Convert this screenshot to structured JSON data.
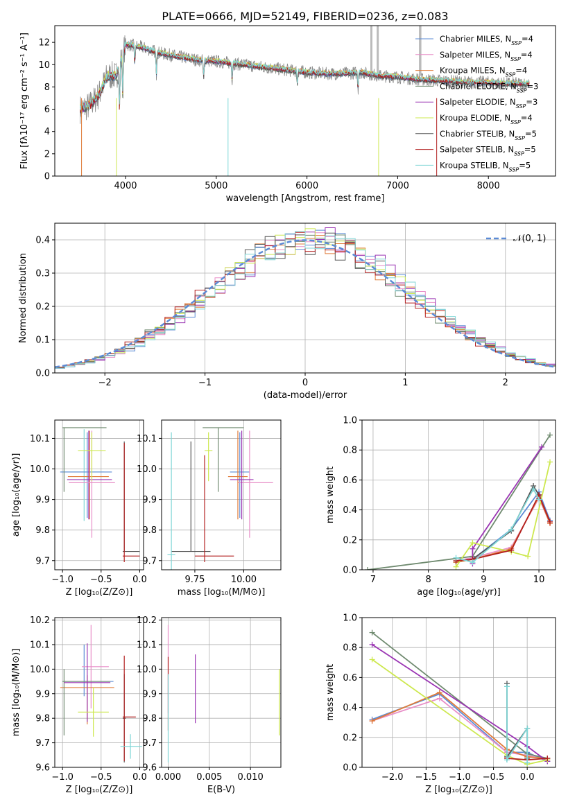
{
  "figure_title": "PLATE=0666, MJD=52149, FIBERID=0236, z=0.083",
  "colors": {
    "chabrier_miles": "#5b8bd6",
    "salpeter_miles": "#e88fc8",
    "kroupa_miles": "#e07b39",
    "chabrier_elodie": "#6f8a6f",
    "salpeter_elodie": "#9a34b3",
    "kroupa_elodie": "#cde84f",
    "chabrier_stelib": "#555555",
    "salpeter_stelib": "#b21f1f",
    "kroupa_stelib": "#7fd6d6",
    "data": "#888888",
    "normal": "#5b8bd6"
  },
  "chart_data": [
    {
      "id": "spectrum",
      "type": "line",
      "title": "PLATE=0666, MJD=52149, FIBERID=0236, z=0.083",
      "xlabel": "wavelength [Angstrom, rest frame]",
      "ylabel": "Flux [fλ10⁻¹⁷ erg cm⁻² s⁻¹ A⁻¹]",
      "xlim": [
        3220,
        8740
      ],
      "ylim": [
        0,
        13.5
      ],
      "xticks": [
        4000,
        5000,
        6000,
        7000,
        8000
      ],
      "yticks": [
        0,
        2,
        4,
        6,
        8,
        10,
        12
      ],
      "x": [
        3500,
        3600,
        3700,
        3800,
        3900,
        4000,
        4100,
        4200,
        4400,
        4600,
        4800,
        5000,
        5200,
        5400,
        5600,
        5800,
        6000,
        6200,
        6400,
        6600,
        6800,
        7000,
        7200,
        7400,
        7600,
        7800,
        8000,
        8200,
        8400
      ],
      "y": [
        6.0,
        6.3,
        7.2,
        9.0,
        9.0,
        11.8,
        11.7,
        11.5,
        11.0,
        10.7,
        10.4,
        10.3,
        10.1,
        9.9,
        9.7,
        9.5,
        9.3,
        9.2,
        9.2,
        9.3,
        9.0,
        8.9,
        8.7,
        8.6,
        8.5,
        8.4,
        8.4,
        8.3,
        8.3
      ],
      "legend": [
        "Chabrier MILES, N_SSP=4",
        "Salpeter MILES, N_SSP=4",
        "Kroupa MILES, N_SSP=4",
        "Chabrier ELODIE, N_SSP=3",
        "Salpeter ELODIE, N_SSP=3",
        "Kroupa ELODIE, N_SSP=4",
        "Chabrier STELIB, N_SSP=5",
        "Salpeter STELIB, N_SSP=5",
        "Kroupa STELIB, N_SSP=5"
      ],
      "legend_position": "top-right",
      "grid": false
    },
    {
      "id": "residuals",
      "type": "line",
      "xlabel": "(data-model)/error",
      "ylabel": "Normed distribution",
      "xlim": [
        -2.5,
        2.5
      ],
      "ylim": [
        0,
        0.45
      ],
      "xticks": [
        -2,
        -1,
        0,
        1,
        2
      ],
      "yticks": [
        0.0,
        0.1,
        0.2,
        0.3,
        0.4
      ],
      "series_name": "𝒩(0, 1)",
      "legend_position": "top-right",
      "grid": true,
      "note": "histograms of normalized residuals for the 9 fits, overlaid on the standard normal density"
    },
    {
      "id": "age_vs_Z",
      "type": "scatter",
      "xlabel": "Z [log₁₀(Z/Z⊙)]",
      "ylabel": "age  [log₁₀(age/yr)]",
      "xlim": [
        -1.1,
        0.05
      ],
      "ylim": [
        9.67,
        10.16
      ],
      "xticks": [
        -1.0,
        -0.5,
        0.0
      ],
      "yticks": [
        9.7,
        9.8,
        9.9,
        10.0,
        10.1
      ],
      "points": [
        {
          "fit": "kroupa_stelib",
          "x": -0.72,
          "y": 9.99,
          "xerr": [
            0.3,
            0.26
          ],
          "yerr": [
            0.16,
            0.14
          ]
        },
        {
          "fit": "chabrier_miles",
          "x": -0.68,
          "y": 9.99,
          "xerr": [
            0.35,
            0.32
          ],
          "yerr": [
            0.15,
            0.13
          ]
        },
        {
          "fit": "kroupa_miles",
          "x": -0.65,
          "y": 9.975,
          "xerr": [
            0.28,
            0.25
          ],
          "yerr": [
            0.14,
            0.15
          ]
        },
        {
          "fit": "salpeter_elodie",
          "x": -0.66,
          "y": 9.965,
          "xerr": [
            0.28,
            0.3
          ],
          "yerr": [
            0.13,
            0.16
          ]
        },
        {
          "fit": "salpeter_miles",
          "x": -0.62,
          "y": 9.955,
          "xerr": [
            0.3,
            0.3
          ],
          "yerr": [
            0.18,
            0.17
          ]
        },
        {
          "fit": "kroupa_elodie",
          "x": -0.62,
          "y": 10.06,
          "xerr": [
            0.18,
            0.18
          ],
          "yerr": [
            0.1,
            0.06
          ]
        },
        {
          "fit": "chabrier_elodie",
          "x": -0.98,
          "y": 10.135,
          "xerr": [
            0.02,
            0.55
          ],
          "yerr": [
            0.21,
            0.0
          ]
        },
        {
          "fit": "chabrier_stelib",
          "x": -0.2,
          "y": 9.73,
          "xerr": [
            0.02,
            0.2
          ],
          "yerr": [
            0.0,
            0.36
          ]
        },
        {
          "fit": "salpeter_stelib",
          "x": -0.2,
          "y": 9.715,
          "xerr": [
            0.02,
            0.2
          ],
          "yerr": [
            0.02,
            0.37
          ]
        }
      ],
      "grid": true
    },
    {
      "id": "age_vs_mass",
      "type": "scatter",
      "xlabel": "mass [log₁₀(M/M⊙)]",
      "ylabel": "",
      "xlim": [
        9.58,
        10.19
      ],
      "ylim": [
        9.67,
        10.16
      ],
      "xticks": [
        9.75,
        10.0
      ],
      "xticklabels": [
        "9.75",
        "10.00"
      ],
      "yticks": [
        9.7,
        9.8,
        9.9,
        10.0,
        10.1
      ],
      "points": [
        {
          "fit": "chabrier_miles",
          "x": 9.98,
          "y": 9.99,
          "xerr": [
            0.05,
            0.05
          ],
          "yerr": [
            0.15,
            0.13
          ]
        },
        {
          "fit": "salpeter_miles",
          "x": 10.03,
          "y": 9.955,
          "xerr": [
            0.06,
            0.12
          ],
          "yerr": [
            0.18,
            0.17
          ]
        },
        {
          "fit": "kroupa_miles",
          "x": 9.97,
          "y": 9.975,
          "xerr": [
            0.05,
            0.05
          ],
          "yerr": [
            0.14,
            0.15
          ]
        },
        {
          "fit": "chabrier_elodie",
          "x": 9.87,
          "y": 10.135,
          "xerr": [
            0.08,
            0.13
          ],
          "yerr": [
            0.21,
            0.0
          ]
        },
        {
          "fit": "salpeter_elodie",
          "x": 9.99,
          "y": 9.965,
          "xerr": [
            0.06,
            0.06
          ],
          "yerr": [
            0.13,
            0.16
          ]
        },
        {
          "fit": "kroupa_elodie",
          "x": 9.82,
          "y": 10.06,
          "xerr": [
            0.02,
            0.02
          ],
          "yerr": [
            0.1,
            0.06
          ]
        },
        {
          "fit": "chabrier_stelib",
          "x": 9.73,
          "y": 9.73,
          "xerr": [
            0.1,
            0.1
          ],
          "yerr": [
            0.0,
            0.36
          ]
        },
        {
          "fit": "salpeter_stelib",
          "x": 9.8,
          "y": 9.715,
          "xerr": [
            0.05,
            0.15
          ],
          "yerr": [
            0.02,
            0.33
          ]
        },
        {
          "fit": "kroupa_stelib",
          "x": 9.63,
          "y": 9.72,
          "xerr": [
            0.02,
            0.02
          ],
          "yerr": [
            0.05,
            0.4
          ]
        }
      ],
      "grid": true
    },
    {
      "id": "massweight_vs_age",
      "type": "line",
      "xlabel": "age  [log₁₀(age/yr)]",
      "ylabel": "mass weight",
      "xlim": [
        6.8,
        10.3
      ],
      "ylim": [
        0,
        1.0
      ],
      "xticks": [
        7,
        8,
        9,
        10
      ],
      "yticks": [
        0.0,
        0.2,
        0.4,
        0.6,
        0.8,
        1.0
      ],
      "series": [
        {
          "fit": "chabrier_miles",
          "x": [
            8.5,
            8.8,
            9.5,
            10.0,
            10.2
          ],
          "y": [
            0.05,
            0.07,
            0.27,
            0.52,
            0.33
          ]
        },
        {
          "fit": "salpeter_miles",
          "x": [
            8.5,
            8.8,
            9.5,
            10.0,
            10.2
          ],
          "y": [
            0.06,
            0.08,
            0.15,
            0.48,
            0.31
          ]
        },
        {
          "fit": "kroupa_miles",
          "x": [
            8.5,
            8.8,
            9.5,
            10.0,
            10.2
          ],
          "y": [
            0.05,
            0.07,
            0.14,
            0.49,
            0.31
          ]
        },
        {
          "fit": "chabrier_elodie",
          "x": [
            6.9,
            8.8,
            10.2
          ],
          "y": [
            0.0,
            0.09,
            0.9
          ]
        },
        {
          "fit": "salpeter_elodie",
          "x": [
            8.8,
            8.8,
            10.05
          ],
          "y": [
            0.04,
            0.14,
            0.82
          ]
        },
        {
          "fit": "kroupa_elodie",
          "x": [
            8.5,
            8.8,
            9.5,
            9.8,
            10.2
          ],
          "y": [
            0.02,
            0.18,
            0.12,
            0.09,
            0.72
          ]
        },
        {
          "fit": "chabrier_stelib",
          "x": [
            8.5,
            8.8,
            9.5,
            9.9,
            10.0
          ],
          "y": [
            0.06,
            0.07,
            0.26,
            0.56,
            0.5
          ]
        },
        {
          "fit": "salpeter_stelib",
          "x": [
            8.5,
            8.8,
            9.5,
            10.0,
            10.2
          ],
          "y": [
            0.06,
            0.07,
            0.13,
            0.5,
            0.32
          ]
        },
        {
          "fit": "kroupa_stelib",
          "x": [
            8.5,
            8.8,
            9.5,
            9.9,
            10.0
          ],
          "y": [
            0.08,
            0.05,
            0.27,
            0.54,
            0.47
          ]
        }
      ],
      "grid": true
    },
    {
      "id": "mass_vs_Z",
      "type": "scatter",
      "xlabel": "Z [log₁₀(Z/Z⊙)]",
      "ylabel": "mass [log₁₀(M/M⊙)]",
      "xlim": [
        -1.1,
        0.05
      ],
      "ylim": [
        9.6,
        10.21
      ],
      "xticks": [
        -1.0,
        -0.5,
        0.0
      ],
      "yticks": [
        9.6,
        9.7,
        9.8,
        9.9,
        10.0,
        10.1,
        10.2
      ],
      "points": [
        {
          "fit": "chabrier_miles",
          "x": -0.72,
          "y": 9.95,
          "xerr": [
            0.28,
            0.38
          ],
          "yerr": [
            0.06,
            0.15
          ]
        },
        {
          "fit": "salpeter_miles",
          "x": -0.63,
          "y": 10.01,
          "xerr": [
            0.12,
            0.23
          ],
          "yerr": [
            0.17,
            0.17
          ]
        },
        {
          "fit": "kroupa_miles",
          "x": -0.68,
          "y": 9.925,
          "xerr": [
            0.35,
            0.35
          ],
          "yerr": [
            0.15,
            0.05
          ]
        },
        {
          "fit": "chabrier_elodie",
          "x": -0.98,
          "y": 9.95,
          "xerr": [
            0.02,
            0.6
          ],
          "yerr": [
            0.22,
            0.05
          ]
        },
        {
          "fit": "salpeter_elodie",
          "x": -0.68,
          "y": 9.945,
          "xerr": [
            0.3,
            0.3
          ],
          "yerr": [
            0.16,
            0.16
          ]
        },
        {
          "fit": "kroupa_elodie",
          "x": -0.6,
          "y": 9.825,
          "xerr": [
            0.2,
            0.2
          ],
          "yerr": [
            0.1,
            0.1
          ]
        },
        {
          "fit": "chabrier_stelib",
          "x": -0.2,
          "y": 9.8,
          "xerr": [
            0.02,
            0.02
          ],
          "yerr": [
            0.18,
            0.18
          ]
        },
        {
          "fit": "salpeter_stelib",
          "x": -0.2,
          "y": 9.805,
          "xerr": [
            0.02,
            0.15
          ],
          "yerr": [
            0.18,
            0.25
          ]
        },
        {
          "fit": "kroupa_stelib",
          "x": -0.12,
          "y": 9.685,
          "xerr": [
            0.13,
            0.15
          ],
          "yerr": [
            0.05,
            0.05
          ]
        }
      ],
      "grid": true
    },
    {
      "id": "mass_vs_ebv",
      "type": "scatter",
      "xlabel": "E(B-V)",
      "ylabel": "",
      "xlim": [
        -0.0008,
        0.0137
      ],
      "ylim": [
        9.6,
        10.21
      ],
      "xticks": [
        0.0,
        0.005,
        0.01
      ],
      "xticklabels": [
        "0.000",
        "0.005",
        "0.010"
      ],
      "yticks": [
        9.6,
        9.7,
        9.8,
        9.9,
        10.0,
        10.1,
        10.2
      ],
      "points": [
        {
          "fit": "salpeter_miles",
          "x": 0.0,
          "y": 10.0,
          "yerr": [
            0.18,
            0.18
          ]
        },
        {
          "fit": "salpeter_stelib",
          "x": 0.0,
          "y": 9.9,
          "yerr": [
            0.15,
            0.15
          ]
        },
        {
          "fit": "kroupa_stelib",
          "x": 0.0,
          "y": 9.8,
          "yerr": [
            0.18,
            0.18
          ]
        },
        {
          "fit": "salpeter_elodie",
          "x": 0.0033,
          "y": 9.92,
          "yerr": [
            0.14,
            0.14
          ]
        },
        {
          "fit": "kroupa_elodie",
          "x": 0.0135,
          "y": 9.865,
          "yerr": [
            0.135,
            0.135
          ]
        }
      ],
      "grid": true
    },
    {
      "id": "massweight_vs_Z",
      "type": "line",
      "xlabel": "Z [log₁₀(Z/Z⊙)]",
      "ylabel": "mass weight",
      "xlim": [
        -2.45,
        0.42
      ],
      "ylim": [
        0,
        1.0
      ],
      "xticks": [
        -2.0,
        -1.5,
        -1.0,
        -0.5,
        0.0
      ],
      "yticks": [
        0.0,
        0.2,
        0.4,
        0.6,
        0.8,
        1.0
      ],
      "series": [
        {
          "fit": "chabrier_miles",
          "x": [
            -2.3,
            -1.3,
            -0.3,
            0.0,
            0.3
          ],
          "y": [
            0.32,
            0.49,
            0.1,
            0.1,
            0.04
          ]
        },
        {
          "fit": "salpeter_miles",
          "x": [
            -2.3,
            -1.3,
            -0.3,
            0.0,
            0.3
          ],
          "y": [
            0.31,
            0.46,
            0.1,
            0.08,
            0.05
          ]
        },
        {
          "fit": "kroupa_miles",
          "x": [
            -2.3,
            -1.3,
            -0.3,
            0.0,
            0.3
          ],
          "y": [
            0.31,
            0.5,
            0.12,
            0.07,
            0.06
          ]
        },
        {
          "fit": "chabrier_elodie",
          "x": [
            -2.3,
            0.0,
            0.3
          ],
          "y": [
            0.9,
            0.09,
            0.06
          ]
        },
        {
          "fit": "salpeter_elodie",
          "x": [
            -2.3,
            0.0,
            0.3
          ],
          "y": [
            0.82,
            0.14,
            0.04
          ]
        },
        {
          "fit": "kroupa_elodie",
          "x": [
            -2.3,
            -0.3,
            0.0,
            0.3
          ],
          "y": [
            0.72,
            0.08,
            0.02,
            0.05
          ]
        },
        {
          "fit": "chabrier_stelib",
          "x": [
            -0.3,
            -0.3,
            0.0,
            0.0
          ],
          "y": [
            0.56,
            0.07,
            0.26,
            0.06
          ]
        },
        {
          "fit": "salpeter_stelib",
          "x": [
            -0.3,
            0.0,
            0.3
          ],
          "y": [
            0.06,
            0.05,
            0.06
          ]
        },
        {
          "fit": "kroupa_stelib",
          "x": [
            -0.3,
            -0.3,
            0.0,
            0.0
          ],
          "y": [
            0.54,
            0.05,
            0.26,
            0.03
          ]
        }
      ],
      "grid": true
    }
  ]
}
